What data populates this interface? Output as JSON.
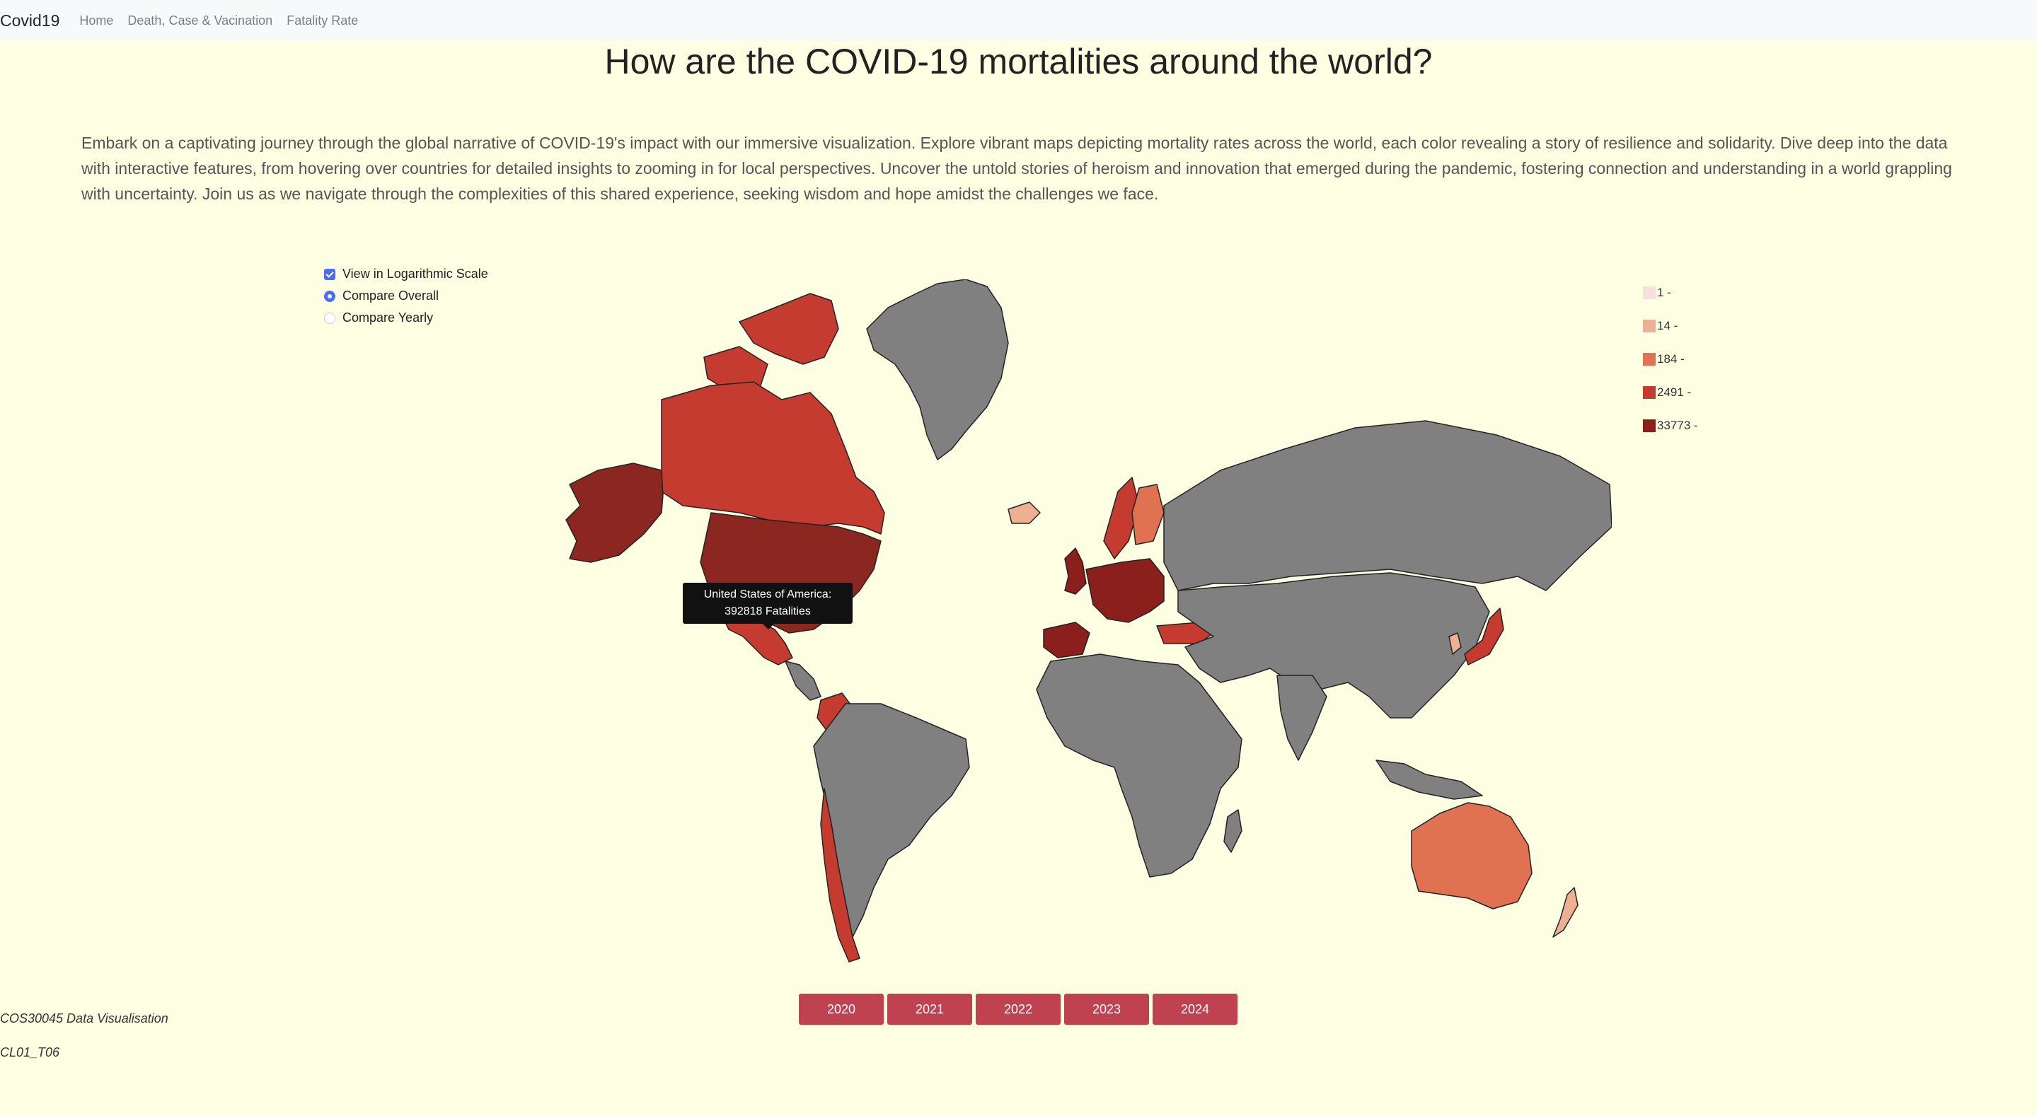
{
  "navbar": {
    "brand": "Covid19",
    "links": [
      "Home",
      "Death, Case & Vacination",
      "Fatality Rate"
    ]
  },
  "page": {
    "title": "How are the COVID-19 mortalities around the world?",
    "intro": "Embark on a captivating journey through the global narrative of COVID-19's impact with our immersive visualization. Explore vibrant maps depicting mortality rates across the world, each color revealing a story of resilience and solidarity. Dive deep into the data with interactive features, from hovering over countries for detailed insights to zooming in for local perspectives. Uncover the untold stories of heroism and innovation that emerged during the pandemic, fostering connection and understanding in a world grappling with uncertainty. Join us as we navigate through the complexities of this shared experience, seeking wisdom and hope amidst the challenges we face."
  },
  "controls": {
    "log_scale_label": "View in Logarithmic Scale",
    "log_scale_checked": true,
    "compare_overall_label": "Compare Overall",
    "compare_yearly_label": "Compare Yearly",
    "selected_mode": "overall"
  },
  "legend": {
    "items": [
      {
        "label": "1 -",
        "color": "#f7e1dc"
      },
      {
        "label": "14 -",
        "color": "#eeb093"
      },
      {
        "label": "184 -",
        "color": "#e07252"
      },
      {
        "label": "2491 -",
        "color": "#c63b30"
      },
      {
        "label": "33773 -",
        "color": "#8b1f1c"
      }
    ]
  },
  "map": {
    "no_data_color": "#808080",
    "hovered_country_color": "#8b2620"
  },
  "tooltip": {
    "country": "United States of America:",
    "value": "392818 Fatalities"
  },
  "year_buttons": [
    "2020",
    "2021",
    "2022",
    "2023",
    "2024"
  ],
  "footer": {
    "course": "COS30045 Data Visualisation",
    "group": "CL01_T06"
  }
}
